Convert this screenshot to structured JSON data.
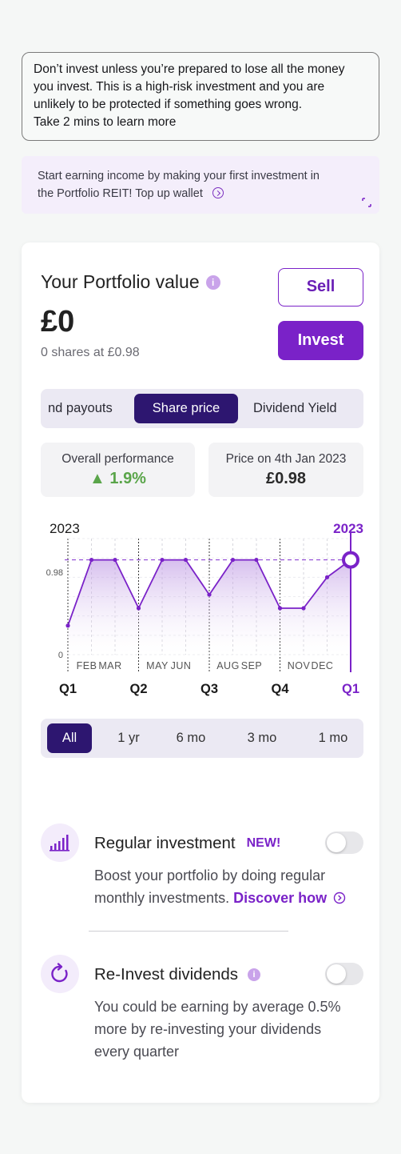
{
  "warning": {
    "line1": "Don’t invest unless you’re prepared to lose all the money",
    "line2": "you invest. This is a high-risk investment and you are",
    "line3": "unlikely to be protected if something goes wrong.",
    "line4": "Take 2 mins to learn more"
  },
  "promo": {
    "line1": "Start earning income by making your first investment in",
    "line2": "the Portfolio REIT! Top up wallet"
  },
  "portfolio": {
    "title": "Your Portfolio value",
    "info": "i",
    "value": "£0",
    "shares": "0 shares at £0.98",
    "sell_label": "Sell",
    "invest_label": "Invest"
  },
  "tabs": {
    "payouts": "nd payouts",
    "share_price": "Share price",
    "dividend_yield": "Dividend Yield"
  },
  "stats": {
    "overall_label": "Overall performance",
    "overall_value": "▲ 1.9%",
    "price_label": "Price on 4th Jan 2023",
    "price_value": "£0.98"
  },
  "chart_data": {
    "type": "line",
    "year_left": "2023",
    "year_right": "2023",
    "y_ticks": [
      "0.98",
      "0"
    ],
    "ylim": [
      0,
      1.2
    ],
    "reference_value": 0.98,
    "month_labels": [
      "FEB",
      "MAR",
      "MAY",
      "JUN",
      "AUG",
      "SEP",
      "NOV",
      "DEC"
    ],
    "quarter_labels": [
      "Q1",
      "Q2",
      "Q3",
      "Q4",
      "Q1"
    ],
    "values": [
      0.3,
      0.98,
      0.98,
      0.48,
      0.98,
      0.98,
      0.62,
      0.98,
      0.98,
      0.48,
      0.48,
      0.8,
      0.98
    ],
    "accent_color": "#7a22c8"
  },
  "ranges": {
    "all": "All",
    "y1": "1 yr",
    "m6": "6 mo",
    "m3": "3 mo",
    "m1": "1 mo"
  },
  "regular": {
    "title": "Regular investment",
    "badge": "NEW!",
    "desc1": "Boost your portfolio by doing regular",
    "desc2": "monthly investments.",
    "discover": "Discover how"
  },
  "reinvest": {
    "title": "Re-Invest dividends",
    "info": "i",
    "desc1": "You could be earning by average 0.5%",
    "desc2": "more by re-investing your dividends",
    "desc3": "every quarter"
  }
}
